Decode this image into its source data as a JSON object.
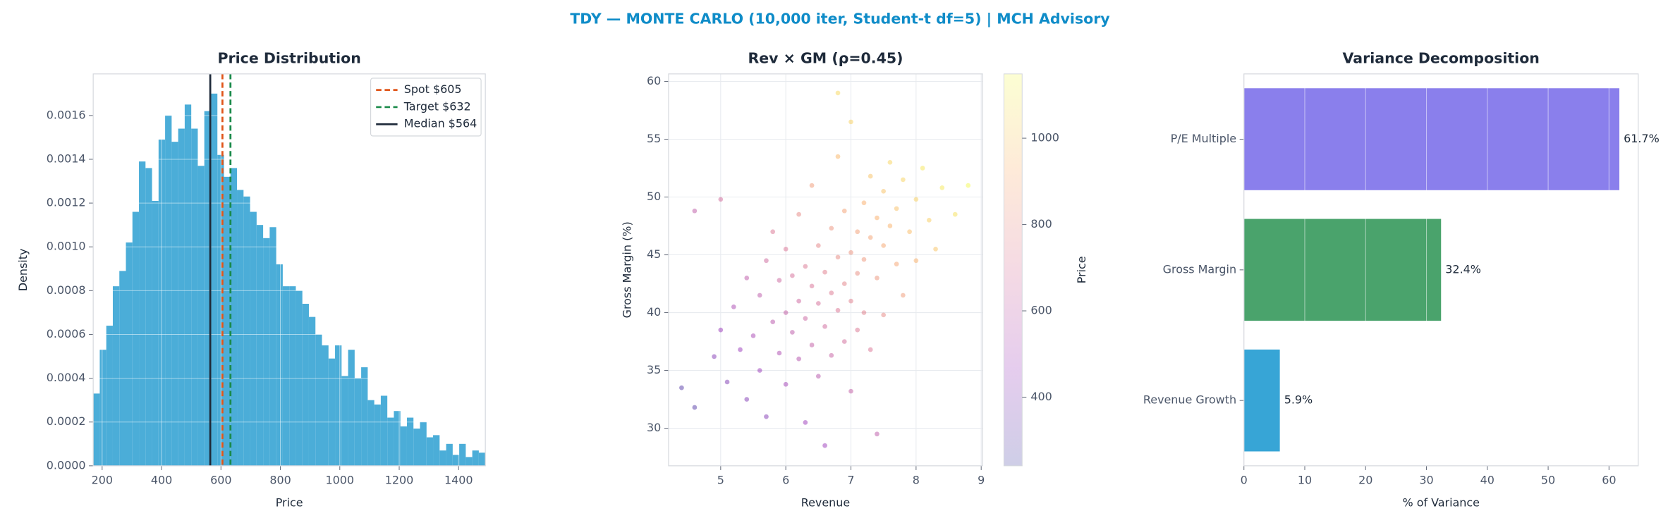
{
  "title": "TDY — MONTE CARLO (10,000 iter, Student-t df=5) | MCH Advisory",
  "chart_data": [
    {
      "type": "histogram",
      "title": "Price Distribution",
      "xlabel": "Price",
      "ylabel": "Density",
      "color": "#4badd8",
      "grid": true,
      "legend": "upper right",
      "bins": [
        170,
        192,
        214,
        236,
        258,
        280,
        302,
        324,
        346,
        368,
        390,
        412,
        434,
        456,
        478,
        500,
        522,
        544,
        566,
        588,
        610,
        632,
        654,
        676,
        698,
        720,
        742,
        764,
        786,
        808,
        830,
        852,
        874,
        896,
        918,
        940,
        962,
        984,
        1006,
        1028,
        1050,
        1072,
        1094,
        1116,
        1138,
        1160,
        1182,
        1204,
        1226,
        1248,
        1270,
        1292,
        1314,
        1336,
        1358,
        1380,
        1402,
        1424,
        1446,
        1468,
        1490
      ],
      "values": [
        0.00033,
        0.00053,
        0.00064,
        0.00082,
        0.00089,
        0.00102,
        0.00116,
        0.00139,
        0.00136,
        0.00121,
        0.00149,
        0.0016,
        0.00148,
        0.00154,
        0.00165,
        0.00154,
        0.00137,
        0.00162,
        0.0017,
        0.00142,
        0.00132,
        0.00136,
        0.00126,
        0.00123,
        0.00116,
        0.0011,
        0.00104,
        0.00109,
        0.00092,
        0.00082,
        0.00082,
        0.0008,
        0.00074,
        0.00068,
        0.0006,
        0.00055,
        0.00049,
        0.00055,
        0.00041,
        0.00053,
        0.0004,
        0.00045,
        0.0003,
        0.00028,
        0.00032,
        0.00022,
        0.00025,
        0.00018,
        0.00022,
        0.00017,
        0.0002,
        0.00013,
        0.00014,
        7e-05,
        0.0001,
        5e-05,
        0.0001,
        4e-05,
        7e-05,
        6e-05
      ],
      "xlim": [
        170,
        1490
      ],
      "ylim": [
        0,
        0.00179
      ],
      "xticks": [
        200,
        400,
        600,
        800,
        1000,
        1200,
        1400
      ],
      "yticks": [
        {
          "value": 0,
          "label": "0.0000"
        },
        {
          "value": 0.0002,
          "label": "0.0002"
        },
        {
          "value": 0.0004,
          "label": "0.0004"
        },
        {
          "value": 0.0006,
          "label": "0.0006"
        },
        {
          "value": 0.0008,
          "label": "0.0008"
        },
        {
          "value": 0.001,
          "label": "0.0010"
        },
        {
          "value": 0.0012,
          "label": "0.0012"
        },
        {
          "value": 0.0014,
          "label": "0.0014"
        },
        {
          "value": 0.0016,
          "label": "0.0016"
        }
      ],
      "vlines": [
        {
          "name": "Spot $605",
          "value": 605,
          "color": "#e0561b",
          "dashed": true
        },
        {
          "name": "Target $632",
          "value": 632,
          "color": "#1a8a4a",
          "dashed": true
        },
        {
          "name": "Median $564",
          "value": 564,
          "color": "#1e2a3a",
          "dashed": false
        }
      ]
    },
    {
      "type": "scatter",
      "title": "Rev × GM (ρ=0.45)",
      "xlabel": "Revenue",
      "ylabel": "Gross Margin (%)",
      "colorbar_label": "Price",
      "grid": true,
      "colormap": [
        "#0d0887",
        "#7e03a8",
        "#cc4778",
        "#f89540",
        "#f0f921"
      ],
      "alpha": 0.4,
      "x": [
        4.4,
        4.6,
        4.9,
        5.0,
        5.1,
        5.2,
        5.3,
        5.4,
        5.4,
        5.5,
        5.6,
        5.6,
        5.7,
        5.7,
        5.8,
        5.8,
        5.9,
        5.9,
        6.0,
        6.0,
        6.0,
        6.1,
        6.1,
        6.2,
        6.2,
        6.2,
        6.3,
        6.3,
        6.3,
        6.4,
        6.4,
        6.4,
        6.5,
        6.5,
        6.5,
        6.6,
        6.6,
        6.6,
        6.7,
        6.7,
        6.7,
        6.8,
        6.8,
        6.8,
        6.9,
        6.9,
        6.9,
        7.0,
        7.0,
        7.0,
        7.0,
        7.1,
        7.1,
        7.1,
        7.2,
        7.2,
        7.2,
        7.3,
        7.3,
        7.3,
        7.4,
        7.4,
        7.4,
        7.5,
        7.5,
        7.5,
        7.6,
        7.6,
        7.7,
        7.7,
        7.8,
        7.8,
        7.9,
        8.0,
        8.0,
        8.1,
        8.2,
        8.3,
        8.4,
        8.6,
        8.8,
        6.8,
        5.0,
        4.6
      ],
      "y": [
        33.5,
        31.8,
        36.2,
        38.5,
        34.0,
        40.5,
        36.8,
        43.0,
        32.5,
        38.0,
        41.5,
        35.0,
        44.5,
        31.0,
        39.2,
        47.0,
        36.5,
        42.8,
        40.0,
        33.8,
        45.5,
        38.3,
        43.2,
        41.0,
        36.0,
        48.5,
        44.0,
        39.5,
        30.5,
        42.3,
        37.2,
        51.0,
        40.8,
        45.8,
        34.5,
        43.5,
        38.8,
        28.5,
        41.7,
        47.3,
        36.3,
        44.8,
        40.2,
        53.5,
        42.5,
        37.5,
        48.8,
        45.2,
        41.0,
        33.2,
        56.5,
        47.0,
        43.4,
        38.5,
        49.5,
        44.6,
        40.0,
        46.5,
        51.8,
        36.8,
        48.2,
        43.0,
        29.5,
        50.5,
        45.8,
        39.8,
        47.5,
        53.0,
        44.2,
        49.0,
        51.5,
        41.5,
        47.0,
        49.8,
        44.5,
        52.5,
        48.0,
        45.5,
        50.8,
        48.5,
        51.0,
        59.0,
        49.8,
        48.8
      ],
      "c": [
        301,
        294,
        410,
        463,
        394,
        523,
        468,
        592,
        403,
        514,
        589,
        472,
        655,
        412,
        572,
        712,
        535,
        648,
        610,
        498,
        709,
        591,
        680,
        652,
        562,
        787,
        718,
        637,
        475,
        699,
        608,
        856,
        684,
        774,
        571,
        745,
        660,
        475,
        725,
        825,
        627,
        792,
        710,
        949,
        763,
        673,
        876,
        824,
        748,
        608,
        1027,
        868,
        803,
        715,
        925,
        837,
        754,
        883,
        978,
        708,
        926,
        832,
        589,
        979,
        894,
        786,
        937,
        1036,
        890,
        976,
        1033,
        853,
        964,
        1026,
        931,
        1087,
        1018,
        985,
        1092,
        1075,
        1144,
        1048,
        666,
        600
      ],
      "xlim": [
        4.2,
        9.02
      ],
      "ylim": [
        26.75,
        60.65
      ],
      "clim": [
        241,
        1149
      ],
      "xticks": [
        5,
        6,
        7,
        8,
        9
      ],
      "yticks": [
        30,
        35,
        40,
        45,
        50,
        55,
        60
      ],
      "cticks": [
        400,
        600,
        800,
        1000
      ]
    },
    {
      "type": "barh",
      "title": "Variance Decomposition",
      "xlabel": "% of Variance",
      "grid": true,
      "categories": [
        "P/E Multiple",
        "Gross Margin",
        "Revenue Growth"
      ],
      "values": [
        61.7,
        32.4,
        5.9
      ],
      "value_labels": [
        "61.7%",
        "32.4%",
        "5.9%"
      ],
      "colors": [
        "#8a7fec",
        "#4aa36c",
        "#37a5d6"
      ],
      "xlim": [
        0,
        64.8
      ],
      "xticks": [
        0,
        10,
        20,
        30,
        40,
        50,
        60
      ]
    }
  ]
}
